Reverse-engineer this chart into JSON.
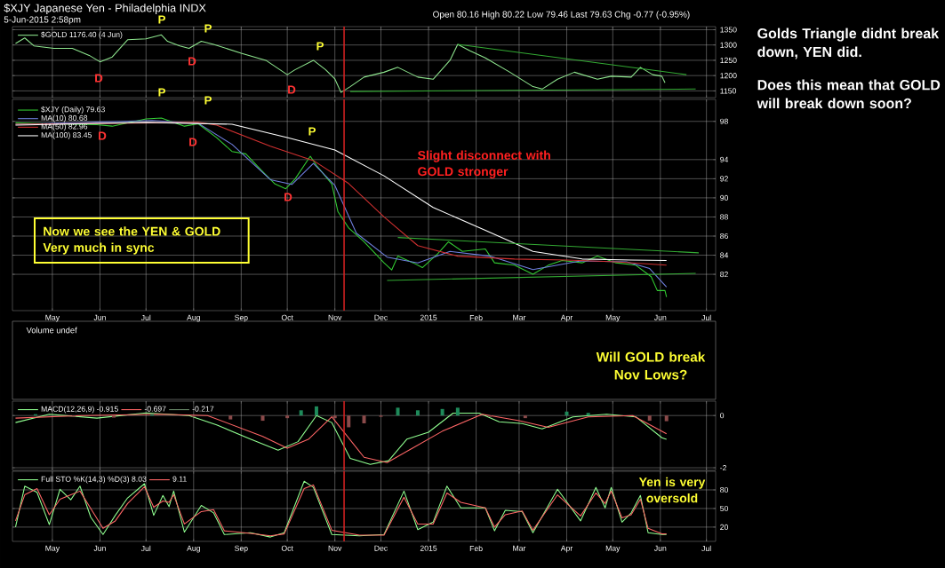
{
  "chart_data": [
    {
      "type": "line",
      "title": "$XJY Japanese Yen - Philadelphia INDX",
      "subtitle": "5-Jun-2015 2:58pm",
      "annotations": [
        "Open 80.16 High 80.22 Low 79.46 Last 79.63 Chg -0.77 (-0.95%)",
        "Golds Triangle didnt break down, YEN did.",
        "Does this mean that GOLD will break down soon?",
        "P",
        "P",
        "P",
        "D",
        "D",
        "D"
      ],
      "xlim": [
        "2014-04-05",
        "2015-07-07"
      ],
      "xticks": [
        {
          "value": "2014-05-01",
          "label": null
        },
        {
          "value": "2014-06-01",
          "label": null
        },
        {
          "value": "2014-07-01",
          "label": null
        },
        {
          "value": "2014-08-01",
          "label": null
        },
        {
          "value": "2014-09-01",
          "label": null
        },
        {
          "value": "2014-10-01",
          "label": null
        },
        {
          "value": "2014-11-01",
          "label": null
        },
        {
          "value": "2014-12-01",
          "label": null
        },
        {
          "value": "2015-01-01",
          "label": null
        },
        {
          "value": "2015-02-01",
          "label": null
        },
        {
          "value": "2015-03-01",
          "label": null
        },
        {
          "value": "2015-04-01",
          "label": null
        },
        {
          "value": "2015-05-01",
          "label": null
        },
        {
          "value": "2015-06-01",
          "label": null
        },
        {
          "value": "2015-07-01",
          "label": null
        }
      ],
      "ylim": [
        1128,
        1360
      ],
      "yticks": [
        1150,
        1200,
        1250,
        1300,
        1350
      ],
      "grid": true,
      "legend": "top left",
      "tick_labels": "y",
      "ref_lines": [
        {
          "axis": "x",
          "value": "2014-11-07",
          "color": "#dd2222"
        }
      ],
      "series": [
        {
          "name": "$GOLD 1176.40 (4 Jun)",
          "color": "#8ee58e",
          "x": [
            "2014-04-07",
            "2014-04-13",
            "2014-04-19",
            "2014-05-02",
            "2014-05-14",
            "2014-05-25",
            "2014-06-01",
            "2014-06-09",
            "2014-06-19",
            "2014-07-01",
            "2014-07-11",
            "2014-07-15",
            "2014-07-23",
            "2014-07-29",
            "2014-08-06",
            "2014-08-14",
            "2014-09-01",
            "2014-09-17",
            "2014-10-01",
            "2014-10-06",
            "2014-10-18",
            "2014-10-26",
            "2014-11-01",
            "2014-11-05",
            "2014-11-11",
            "2014-11-20",
            "2014-12-03",
            "2014-12-12",
            "2014-12-25",
            "2015-01-04",
            "2015-01-15",
            "2015-01-20",
            "2015-01-28",
            "2015-02-07",
            "2015-02-23",
            "2015-03-10",
            "2015-03-16",
            "2015-03-26",
            "2015-04-06",
            "2015-04-21",
            "2015-04-30",
            "2015-05-13",
            "2015-05-19",
            "2015-05-27",
            "2015-06-02",
            "2015-06-04"
          ],
          "values": [
            1305,
            1323,
            1297,
            1289,
            1289,
            1266,
            1245,
            1261,
            1317,
            1320,
            1333,
            1312,
            1297,
            1289,
            1312,
            1302,
            1273,
            1250,
            1203,
            1219,
            1250,
            1219,
            1189,
            1145,
            1164,
            1195,
            1211,
            1227,
            1195,
            1188,
            1250,
            1302,
            1281,
            1258,
            1211,
            1164,
            1156,
            1188,
            1211,
            1188,
            1198,
            1195,
            1227,
            1203,
            1198,
            1176.4
          ]
        },
        {
          "color": "#33aa33",
          "x": [
            "2015-01-20",
            "2015-06-18"
          ],
          "values": [
            1302,
            1203
          ]
        },
        {
          "color": "#33aa33",
          "x": [
            "2014-11-11",
            "2015-06-24"
          ],
          "values": [
            1148,
            1156
          ]
        }
      ]
    },
    {
      "type": "line",
      "annotations": [
        "Slight disconnect with GOLD stronger",
        "Now we see the YEN & GOLD Very much in sync",
        "Volume undef",
        "Will GOLD break Nov Lows?",
        "P",
        "P",
        "P",
        "D",
        "D",
        "D"
      ],
      "xlim": [
        "2014-04-05",
        "2015-07-07"
      ],
      "xticks": [
        {
          "value": "2014-05-01",
          "label": "May"
        },
        {
          "value": "2014-06-01",
          "label": "Jun"
        },
        {
          "value": "2014-07-01",
          "label": "Jul"
        },
        {
          "value": "2014-08-01",
          "label": "Aug"
        },
        {
          "value": "2014-09-01",
          "label": "Sep"
        },
        {
          "value": "2014-10-01",
          "label": "Oct"
        },
        {
          "value": "2014-11-01",
          "label": "Nov"
        },
        {
          "value": "2014-12-01",
          "label": "Dec"
        },
        {
          "value": "2015-01-01",
          "label": "2015"
        },
        {
          "value": "2015-02-01",
          "label": "Feb"
        },
        {
          "value": "2015-03-01",
          "label": "Mar"
        },
        {
          "value": "2015-04-01",
          "label": "Apr"
        },
        {
          "value": "2015-05-01",
          "label": "May"
        },
        {
          "value": "2015-06-01",
          "label": "Jun"
        },
        {
          "value": "2015-07-01",
          "label": "Jul"
        }
      ],
      "ylim": [
        78.2,
        100.3
      ],
      "yticks": [
        82,
        84,
        86,
        88,
        90,
        92,
        94,
        98
      ],
      "grid": true,
      "legend": "top left",
      "ref_lines": [
        {
          "axis": "x",
          "value": "2014-11-07",
          "color": "#dd2222"
        }
      ],
      "series": [
        {
          "name": "$XJY (Daily) 79.63",
          "color": "#33cc33",
          "x": [
            "2014-04-07",
            "2014-04-29",
            "2014-05-30",
            "2014-06-09",
            "2014-07-01",
            "2014-07-11",
            "2014-07-26",
            "2014-08-04",
            "2014-08-16",
            "2014-08-26",
            "2014-09-04",
            "2014-09-14",
            "2014-09-23",
            "2014-09-30",
            "2014-10-06",
            "2014-10-16",
            "2014-10-20",
            "2014-10-30",
            "2014-11-03",
            "2014-11-10",
            "2014-11-20",
            "2014-12-03",
            "2014-12-08",
            "2014-12-12",
            "2014-12-22",
            "2014-12-28",
            "2015-01-07",
            "2015-01-14",
            "2015-01-23",
            "2015-02-07",
            "2015-02-13",
            "2015-02-26",
            "2015-03-10",
            "2015-03-20",
            "2015-03-29",
            "2015-04-11",
            "2015-04-21",
            "2015-05-03",
            "2015-05-16",
            "2015-05-26",
            "2015-05-30",
            "2015-06-04",
            "2015-06-05"
          ],
          "values": [
            97.85,
            97.75,
            97.65,
            97.5,
            98.25,
            98.35,
            97.5,
            97.75,
            96.3,
            94.85,
            94.6,
            92.9,
            91.45,
            90.95,
            91.95,
            94.35,
            93.4,
            91.45,
            88.55,
            86.85,
            85.4,
            83.2,
            82.45,
            83.9,
            83.2,
            82.7,
            84.15,
            85.4,
            84.4,
            84.65,
            83.2,
            82.95,
            82.0,
            82.95,
            83.45,
            83.2,
            83.9,
            83.2,
            82.95,
            81.75,
            80.3,
            80.3,
            79.63
          ]
        },
        {
          "name": "MA(10) 80.68",
          "color": "#7080e0",
          "x": [
            "2014-04-07",
            "2014-07-05",
            "2014-08-04",
            "2014-08-26",
            "2014-09-20",
            "2014-10-04",
            "2014-10-18",
            "2014-11-01",
            "2014-11-15",
            "2014-12-05",
            "2014-12-25",
            "2015-01-15",
            "2015-02-10",
            "2015-03-10",
            "2015-04-10",
            "2015-05-10",
            "2015-05-25",
            "2015-06-05"
          ],
          "values": [
            97.7,
            98.1,
            97.8,
            95.6,
            91.9,
            91.4,
            93.6,
            91.3,
            86.3,
            83.8,
            83.2,
            84.4,
            83.9,
            82.5,
            83.4,
            83.3,
            82.6,
            80.68
          ]
        },
        {
          "name": "MA(50) 82.96",
          "color": "#d03030",
          "x": [
            "2014-04-07",
            "2014-08-04",
            "2014-08-16",
            "2014-09-20",
            "2014-10-18",
            "2014-11-10",
            "2014-12-03",
            "2014-12-25",
            "2015-01-20",
            "2015-02-26",
            "2015-04-01",
            "2015-05-03",
            "2015-06-05"
          ],
          "values": [
            97.7,
            97.9,
            97.6,
            95.4,
            93.9,
            91.5,
            88.0,
            85.0,
            83.9,
            83.6,
            83.5,
            83.3,
            82.96
          ]
        },
        {
          "name": "MA(100) 83.45",
          "color": "#ffffff",
          "x": [
            "2014-04-07",
            "2014-07-01",
            "2014-08-26",
            "2014-10-01",
            "2014-11-01",
            "2014-12-03",
            "2015-01-04",
            "2015-02-07",
            "2015-03-10",
            "2015-04-11",
            "2015-05-13",
            "2015-06-05"
          ],
          "values": [
            97.6,
            97.9,
            97.7,
            96.3,
            95.0,
            92.3,
            89.0,
            86.6,
            84.4,
            83.6,
            83.5,
            83.45
          ]
        },
        {
          "color": "#33aa33",
          "x": [
            "2014-12-12",
            "2015-06-26"
          ],
          "values": [
            85.85,
            84.25
          ]
        },
        {
          "color": "#33aa33",
          "x": [
            "2014-12-05",
            "2015-06-24"
          ],
          "values": [
            81.35,
            82.1
          ]
        }
      ]
    },
    {
      "type": "line",
      "xlim": [
        "2014-04-05",
        "2015-07-07"
      ],
      "xticks": [
        {
          "value": "2014-05-01",
          "label": null
        },
        {
          "value": "2014-06-01",
          "label": null
        },
        {
          "value": "2014-07-01",
          "label": null
        },
        {
          "value": "2014-08-01",
          "label": null
        },
        {
          "value": "2014-09-01",
          "label": null
        },
        {
          "value": "2014-10-01",
          "label": null
        },
        {
          "value": "2014-11-01",
          "label": null
        },
        {
          "value": "2014-12-01",
          "label": null
        },
        {
          "value": "2015-01-01",
          "label": null
        },
        {
          "value": "2015-02-01",
          "label": null
        },
        {
          "value": "2015-03-01",
          "label": null
        },
        {
          "value": "2015-04-01",
          "label": null
        },
        {
          "value": "2015-05-01",
          "label": null
        },
        {
          "value": "2015-06-01",
          "label": null
        },
        {
          "value": "2015-07-01",
          "label": null
        }
      ],
      "ylim": [
        -2.1,
        0.55
      ],
      "yticks": [
        -2,
        0
      ],
      "grid": true,
      "legend": "top left",
      "tick_labels": "y",
      "ref_lines": [
        {
          "axis": "x",
          "value": "2014-11-07",
          "color": "#dd2222"
        }
      ],
      "series": [
        {
          "name": "-0.217",
          "type": "bar",
          "color": "#6a8a6a",
          "x": [
            "2014-04-20",
            "2014-05-15",
            "2014-06-10",
            "2014-07-05",
            "2014-08-01",
            "2014-08-25",
            "2014-09-15",
            "2014-10-01",
            "2014-10-10",
            "2014-10-20",
            "2014-11-01",
            "2014-11-10",
            "2014-11-20",
            "2014-12-01",
            "2014-12-12",
            "2014-12-25",
            "2015-01-10",
            "2015-01-20",
            "2015-02-10",
            "2015-03-05",
            "2015-03-20",
            "2015-04-01",
            "2015-04-15",
            "2015-05-10",
            "2015-05-25",
            "2015-06-05"
          ],
          "values": [
            0.05,
            -0.05,
            -0.08,
            0.05,
            -0.05,
            -0.15,
            -0.2,
            -0.1,
            0.2,
            0.35,
            -0.1,
            -0.45,
            -0.3,
            -0.05,
            0.3,
            0.2,
            0.25,
            0.3,
            -0.05,
            -0.1,
            0.0,
            0.15,
            0.1,
            0.0,
            -0.2,
            -0.217
          ],
          "colors": [
            "#1e8a5a",
            "#8a4a4a",
            "#8a4a4a",
            "#1e8a5a",
            "#8a4a4a",
            "#8a4a4a",
            "#8a4a4a",
            "#8a4a4a",
            "#1e8a5a",
            "#1e8a5a",
            "#8a4a4a",
            "#8a4a4a",
            "#8a4a4a",
            "#8a4a4a",
            "#1e8a5a",
            "#1e8a5a",
            "#1e8a5a",
            "#1e8a5a",
            "#8a4a4a",
            "#8a4a4a",
            "#8a4a4a",
            "#1e8a5a",
            "#1e8a5a",
            "#8a4a4a",
            "#8a4a4a",
            "#8a4a4a"
          ]
        },
        {
          "name": "MACD(12,26,9) -0.915",
          "color": "#90ff90",
          "x": [
            "2014-04-07",
            "2014-04-29",
            "2014-05-30",
            "2014-07-01",
            "2014-07-29",
            "2014-08-16",
            "2014-09-07",
            "2014-09-25",
            "2014-10-08",
            "2014-10-20",
            "2014-10-30",
            "2014-11-11",
            "2014-11-24",
            "2014-12-06",
            "2014-12-18",
            "2015-01-01",
            "2015-01-17",
            "2015-02-03",
            "2015-02-16",
            "2015-03-03",
            "2015-03-16",
            "2015-04-05",
            "2015-04-27",
            "2015-05-16",
            "2015-06-02",
            "2015-06-05"
          ],
          "values": [
            -0.27,
            0.05,
            -0.1,
            0.1,
            0,
            -0.36,
            -0.9,
            -1.33,
            -1.0,
            0,
            -0.27,
            -1.64,
            -1.87,
            -1.73,
            -0.9,
            -0.64,
            0.09,
            0.09,
            -0.24,
            -0.31,
            -0.51,
            -0.05,
            0.05,
            -0.05,
            -0.85,
            -0.915
          ]
        },
        {
          "name": "-0.697",
          "color": "#ff6666",
          "x": [
            "2014-04-07",
            "2014-05-20",
            "2014-07-10",
            "2014-08-10",
            "2014-09-15",
            "2014-10-01",
            "2014-10-15",
            "2014-10-30",
            "2014-11-20",
            "2014-12-05",
            "2014-12-20",
            "2015-01-10",
            "2015-02-05",
            "2015-03-01",
            "2015-03-20",
            "2015-04-15",
            "2015-05-14",
            "2015-06-05"
          ],
          "values": [
            -0.1,
            0,
            0.05,
            0,
            -0.8,
            -1.25,
            -0.9,
            -0.05,
            -1.6,
            -1.8,
            -1.3,
            -0.6,
            0.05,
            -0.2,
            -0.45,
            -0.05,
            0,
            -0.697
          ]
        }
      ]
    },
    {
      "type": "line",
      "annotations": [
        "Yen is very oversold"
      ],
      "xlim": [
        "2014-04-05",
        "2015-07-07"
      ],
      "xticks": [
        {
          "value": "2014-05-01",
          "label": "May"
        },
        {
          "value": "2014-06-01",
          "label": "Jun"
        },
        {
          "value": "2014-07-01",
          "label": "Jul"
        },
        {
          "value": "2014-08-01",
          "label": "Aug"
        },
        {
          "value": "2014-09-01",
          "label": "Sep"
        },
        {
          "value": "2014-10-01",
          "label": "Oct"
        },
        {
          "value": "2014-11-01",
          "label": "Nov"
        },
        {
          "value": "2014-12-01",
          "label": "Dec"
        },
        {
          "value": "2015-01-01",
          "label": "2015"
        },
        {
          "value": "2015-02-01",
          "label": "Feb"
        },
        {
          "value": "2015-03-01",
          "label": "Mar"
        },
        {
          "value": "2015-04-01",
          "label": "Apr"
        },
        {
          "value": "2015-05-01",
          "label": "May"
        },
        {
          "value": "2015-06-01",
          "label": "Jun"
        },
        {
          "value": "2015-07-01",
          "label": "Jul"
        }
      ],
      "ylim": [
        -3,
        110
      ],
      "yticks": [
        20,
        50,
        80
      ],
      "grid": true,
      "legend": "top left",
      "ref_lines": [
        {
          "axis": "x",
          "value": "2014-11-07",
          "color": "#dd2222"
        }
      ],
      "x": [
        "2014-04-07",
        "2014-04-13",
        "2014-04-21",
        "2014-04-29",
        "2014-05-06",
        "2014-05-13",
        "2014-05-19",
        "2014-05-26",
        "2014-06-03",
        "2014-06-11",
        "2014-06-19",
        "2014-06-30",
        "2014-07-06",
        "2014-07-12",
        "2014-07-16",
        "2014-07-19",
        "2014-07-26",
        "2014-08-06",
        "2014-08-14",
        "2014-08-21",
        "2014-09-07",
        "2014-09-20",
        "2014-09-29",
        "2014-10-12",
        "2014-10-18",
        "2014-10-30",
        "2014-11-17",
        "2014-12-03",
        "2014-12-16",
        "2014-12-25",
        "2015-01-04",
        "2015-01-13",
        "2015-01-22",
        "2015-02-07",
        "2015-02-13",
        "2015-02-20",
        "2015-03-03",
        "2015-03-10",
        "2015-03-26",
        "2015-04-10",
        "2015-04-20",
        "2015-04-26",
        "2015-04-30",
        "2015-05-07",
        "2015-05-13",
        "2015-05-19",
        "2015-05-24",
        "2015-06-02",
        "2015-06-05"
      ],
      "series": [
        {
          "name": "Full STO %K(14,3) %D(3) 8.03",
          "color": "#90ff90",
          "values": [
            20,
            86,
            76,
            24,
            81,
            64,
            86,
            36,
            8,
            39,
            67,
            90,
            39,
            71,
            53,
            78,
            12,
            55,
            43,
            8,
            11,
            4,
            11,
            94,
            84,
            8,
            6,
            8,
            78,
            16,
            28,
            86,
            51,
            51,
            14,
            47,
            45,
            11,
            81,
            30,
            84,
            51,
            84,
            28,
            43,
            71,
            11,
            8,
            8.03
          ]
        },
        {
          "name": "9.11",
          "color": "#ff6666",
          "values": [
            30,
            72,
            82,
            40,
            65,
            72,
            78,
            50,
            18,
            30,
            58,
            85,
            52,
            62,
            60,
            72,
            25,
            45,
            48,
            14,
            10,
            6,
            9,
            82,
            88,
            15,
            7,
            7,
            68,
            25,
            25,
            75,
            60,
            51,
            20,
            40,
            46,
            15,
            72,
            38,
            75,
            58,
            78,
            35,
            40,
            65,
            18,
            9,
            9.11
          ]
        }
      ]
    }
  ]
}
